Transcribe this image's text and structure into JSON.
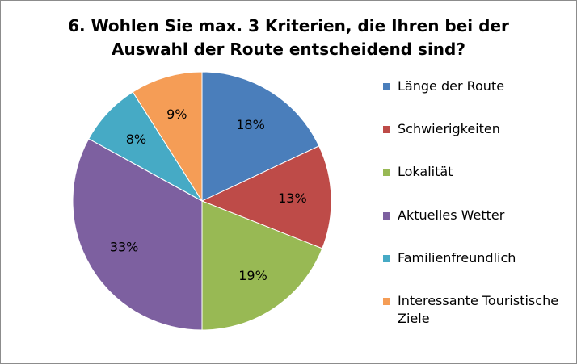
{
  "chart_data": {
    "type": "pie",
    "title_lines": [
      "6. Wohlen Sie max. 3 Kriterien, die Ihren bei der",
      "Auswahl der Route entscheidend sind?"
    ],
    "slices": [
      {
        "label": "Länge der Route",
        "value": 18,
        "value_label": "18%",
        "color": "#4a7ebb"
      },
      {
        "label": "Schwierigkeiten",
        "value": 13,
        "value_label": "13%",
        "color": "#be4b48"
      },
      {
        "label": "Lokalität",
        "value": 19,
        "value_label": "19%",
        "color": "#98b954"
      },
      {
        "label": "Aktuelles Wetter",
        "value": 33,
        "value_label": "33%",
        "color": "#7d60a0"
      },
      {
        "label": "Familienfreundlich",
        "value": 8,
        "value_label": "8%",
        "color": "#46aac5"
      },
      {
        "label": "Interessante Touristische Ziele",
        "value": 9,
        "value_label": "9%",
        "color": "#f59d56"
      }
    ],
    "legend_position": "right",
    "start_angle": "12 o'clock",
    "direction": "clockwise"
  }
}
